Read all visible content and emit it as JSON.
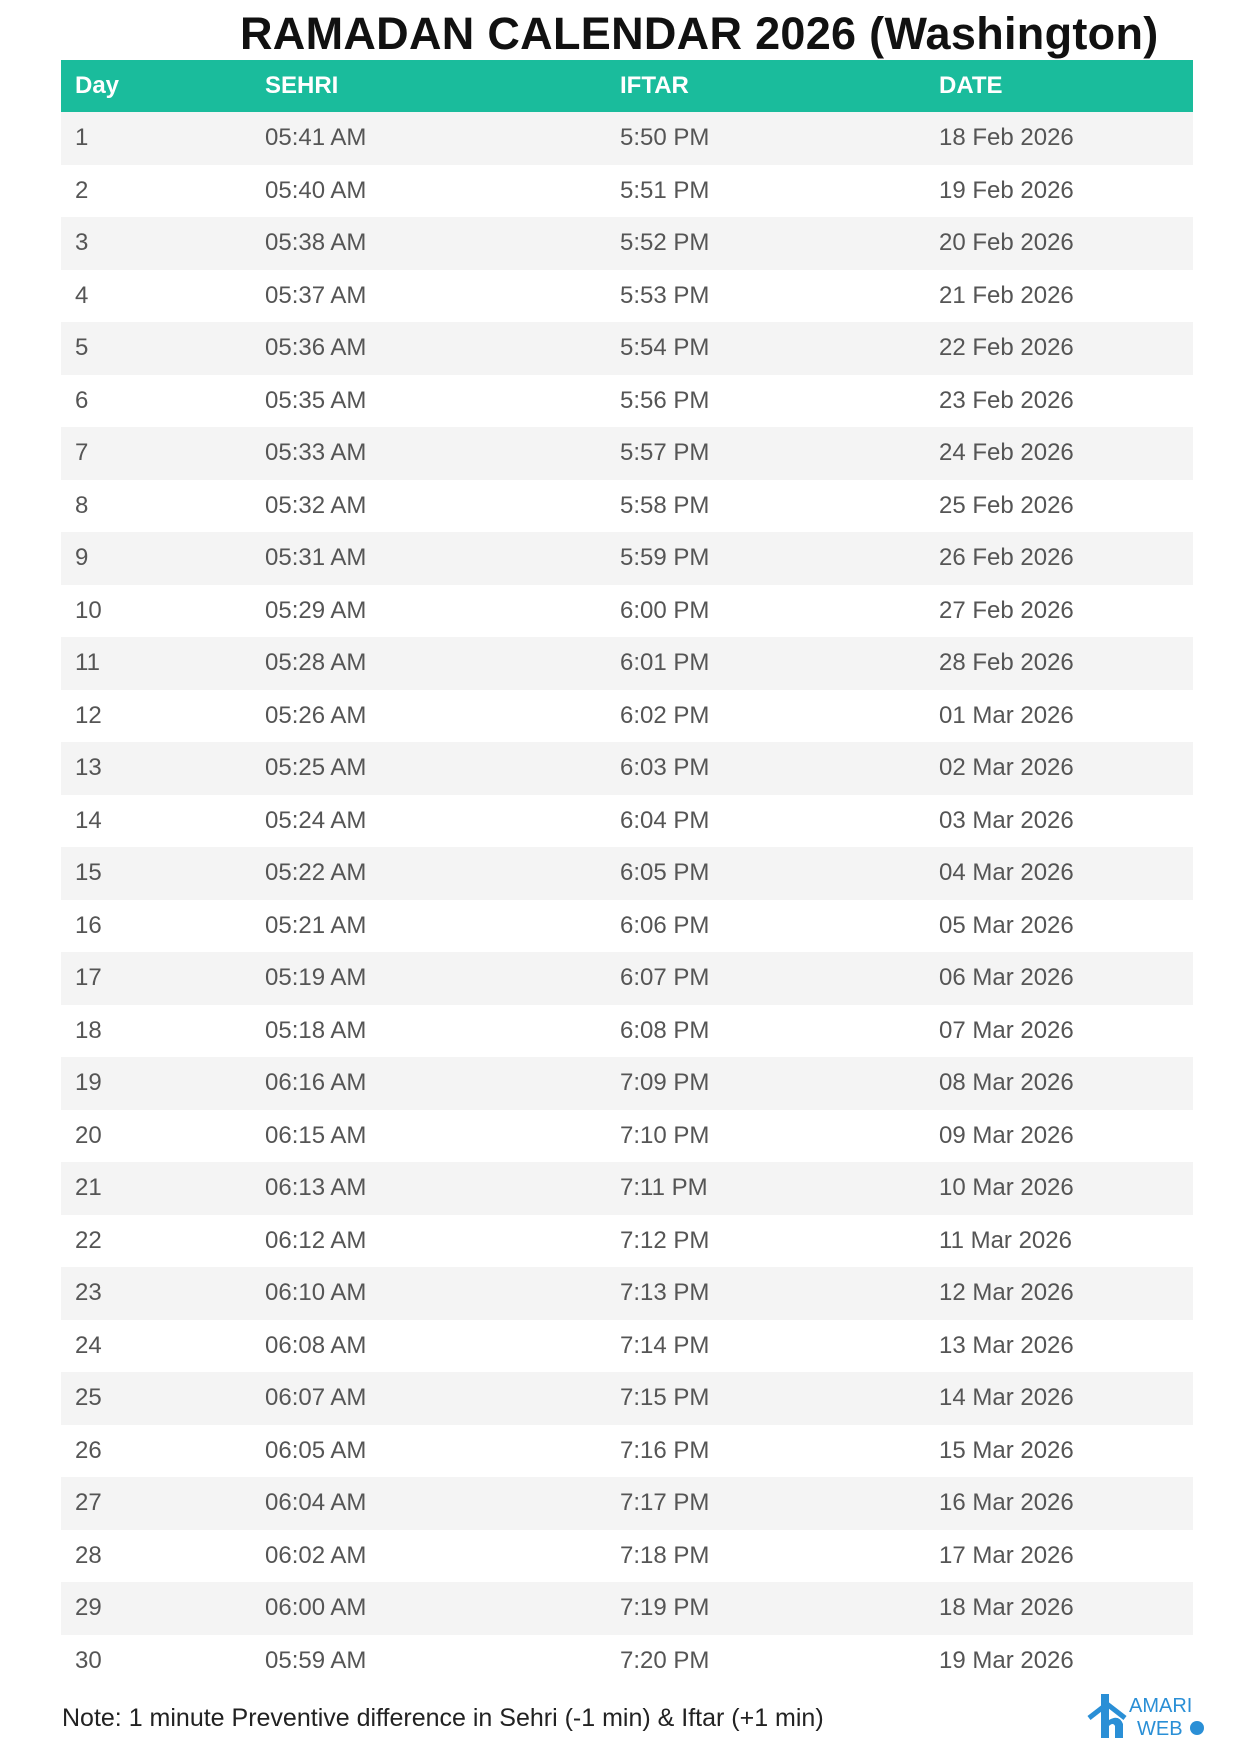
{
  "title": "RAMADAN CALENDAR 2026 (Washington)",
  "header_color": "#1abc9c",
  "columns": [
    "Day",
    "SEHRI",
    "IFTAR",
    "DATE"
  ],
  "rows": [
    [
      "1",
      "05:41 AM",
      "5:50 PM",
      "18 Feb 2026"
    ],
    [
      "2",
      "05:40 AM",
      "5:51 PM",
      "19 Feb 2026"
    ],
    [
      "3",
      "05:38 AM",
      "5:52 PM",
      "20 Feb 2026"
    ],
    [
      "4",
      "05:37 AM",
      "5:53 PM",
      "21 Feb 2026"
    ],
    [
      "5",
      "05:36 AM",
      "5:54 PM",
      "22 Feb 2026"
    ],
    [
      "6",
      "05:35 AM",
      "5:56 PM",
      "23 Feb 2026"
    ],
    [
      "7",
      "05:33 AM",
      "5:57 PM",
      "24 Feb 2026"
    ],
    [
      "8",
      "05:32 AM",
      "5:58 PM",
      "25 Feb 2026"
    ],
    [
      "9",
      "05:31 AM",
      "5:59 PM",
      "26 Feb 2026"
    ],
    [
      "10",
      "05:29 AM",
      "6:00 PM",
      "27 Feb 2026"
    ],
    [
      "11",
      "05:28 AM",
      "6:01 PM",
      "28 Feb 2026"
    ],
    [
      "12",
      "05:26 AM",
      "6:02 PM",
      "01 Mar 2026"
    ],
    [
      "13",
      "05:25 AM",
      "6:03 PM",
      "02 Mar 2026"
    ],
    [
      "14",
      "05:24 AM",
      "6:04 PM",
      "03 Mar 2026"
    ],
    [
      "15",
      "05:22 AM",
      "6:05 PM",
      "04 Mar 2026"
    ],
    [
      "16",
      "05:21 AM",
      "6:06 PM",
      "05 Mar 2026"
    ],
    [
      "17",
      "05:19 AM",
      "6:07 PM",
      "06 Mar 2026"
    ],
    [
      "18",
      "05:18 AM",
      "6:08 PM",
      "07 Mar 2026"
    ],
    [
      "19",
      "06:16 AM",
      "7:09 PM",
      "08 Mar 2026"
    ],
    [
      "20",
      "06:15 AM",
      "7:10 PM",
      "09 Mar 2026"
    ],
    [
      "21",
      "06:13 AM",
      "7:11 PM",
      "10 Mar 2026"
    ],
    [
      "22",
      "06:12 AM",
      "7:12 PM",
      "11 Mar 2026"
    ],
    [
      "23",
      "06:10 AM",
      "7:13 PM",
      "12 Mar 2026"
    ],
    [
      "24",
      "06:08 AM",
      "7:14 PM",
      "13 Mar 2026"
    ],
    [
      "25",
      "06:07 AM",
      "7:15 PM",
      "14 Mar 2026"
    ],
    [
      "26",
      "06:05 AM",
      "7:16 PM",
      "15 Mar 2026"
    ],
    [
      "27",
      "06:04 AM",
      "7:17 PM",
      "16 Mar 2026"
    ],
    [
      "28",
      "06:02 AM",
      "7:18 PM",
      "17 Mar 2026"
    ],
    [
      "29",
      "06:00 AM",
      "7:19 PM",
      "18 Mar 2026"
    ],
    [
      "30",
      "05:59 AM",
      "7:20 PM",
      "19 Mar 2026"
    ]
  ],
  "note": "Note: 1 minute Preventive difference in Sehri (-1 min) & Iftar (+1 min)",
  "logo": {
    "text_top": "AMARI",
    "text_bottom": "WEB",
    "suffix": ".com"
  }
}
